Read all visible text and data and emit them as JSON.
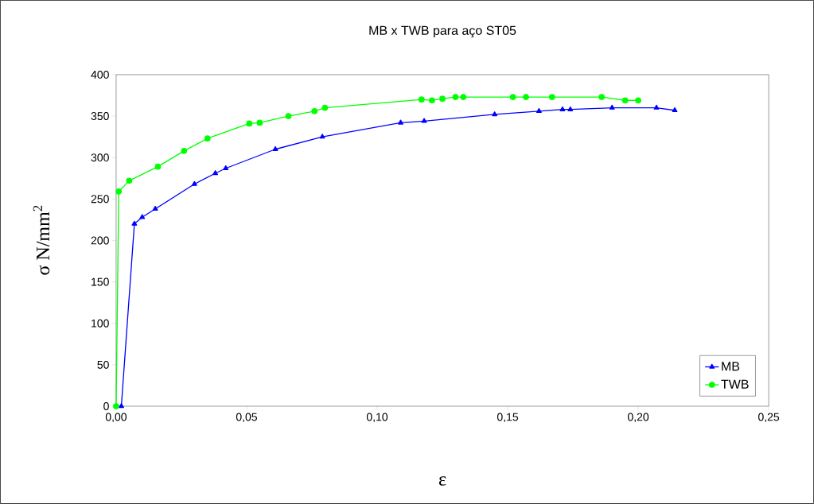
{
  "chart_data": {
    "type": "line",
    "title": "MB x TWB para aço ST05",
    "xlabel": "ε",
    "ylabel": "σ N/mm$^{2}$",
    "xlim": [
      0,
      0.25
    ],
    "ylim": [
      0,
      400
    ],
    "xticks": [
      {
        "value": 0,
        "label": "0,00"
      },
      {
        "value": 0.05,
        "label": "0,05"
      },
      {
        "value": 0.1,
        "label": "0,10"
      },
      {
        "value": 0.15,
        "label": "0,15"
      },
      {
        "value": 0.2,
        "label": "0,20"
      },
      {
        "value": 0.25,
        "label": "0,25"
      }
    ],
    "yticks": [
      0,
      50,
      100,
      150,
      200,
      250,
      300,
      350,
      400
    ],
    "legend": "bottom right",
    "grid": false,
    "line_style": "solid",
    "series": [
      {
        "name": "MB",
        "color": "#0000ff",
        "marker": "triangle",
        "x": [
          0.002,
          0.007,
          0.01,
          0.015,
          0.03,
          0.038,
          0.042,
          0.061,
          0.079,
          0.109,
          0.118,
          0.145,
          0.162,
          0.171,
          0.174,
          0.19,
          0.207,
          0.214
        ],
        "values": [
          0,
          220,
          228,
          238,
          268,
          281,
          287,
          310,
          325,
          342,
          344,
          352,
          356,
          358,
          358,
          360,
          360,
          357
        ]
      },
      {
        "name": "TWB",
        "color": "#00ff00",
        "marker": "circle",
        "x": [
          0,
          0.001,
          0.005,
          0.016,
          0.026,
          0.035,
          0.051,
          0.055,
          0.066,
          0.076,
          0.08,
          0.117,
          0.121,
          0.125,
          0.13,
          0.133,
          0.152,
          0.157,
          0.167,
          0.186,
          0.195,
          0.2
        ],
        "values": [
          0,
          259,
          272,
          289,
          308,
          323,
          341,
          342,
          350,
          356,
          360,
          370,
          369,
          371,
          373,
          373,
          373,
          373,
          373,
          373,
          369,
          369
        ]
      }
    ]
  }
}
